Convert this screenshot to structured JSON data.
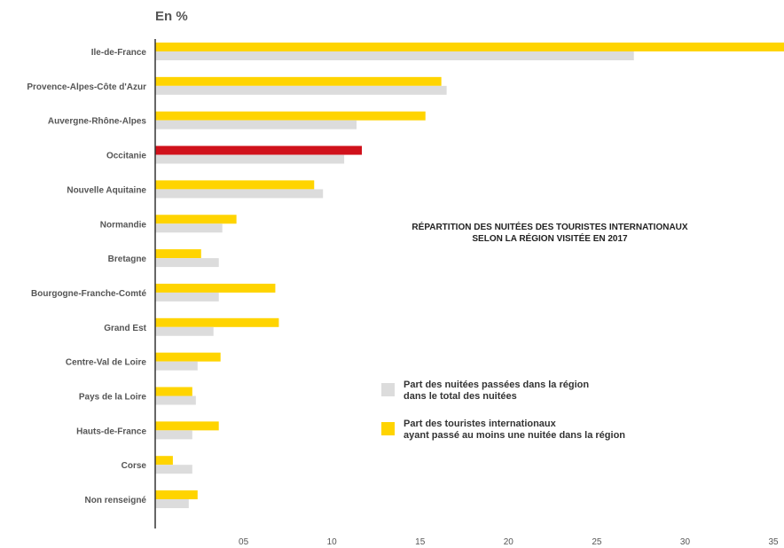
{
  "unit_label": "En %",
  "colors": {
    "series_total": "#dcdcdc",
    "series_tourists": "#ffd400",
    "highlight": "#d0111b",
    "axis": "#333333",
    "text": "#555555"
  },
  "chart_data": {
    "type": "bar",
    "orientation": "horizontal",
    "title_lines": [
      "RÉPARTITION DES NUITÉES DES TOURISTES INTERNATIONAUX",
      "SELON LA RÉGION VISITÉE EN 2017"
    ],
    "categories": [
      "Ile-de-France",
      "Provence-Alpes-Côte d'Azur",
      "Auvergne-Rhône-Alpes",
      "Occitanie",
      "Nouvelle Aquitaine",
      "Normandie",
      "Bretagne",
      "Bourgogne-Franche-Comté",
      "Grand Est",
      "Centre-Val de Loire",
      "Pays de la Loire",
      "Hauts-de-France",
      "Corse",
      "Non renseigné"
    ],
    "highlight_category": "Occitanie",
    "series": [
      {
        "name_lines": [
          "Part des touristes internationaux",
          "ayant passé au moins une nuitée dans la région"
        ],
        "values": [
          35.6,
          16.2,
          15.3,
          11.7,
          9.0,
          4.6,
          2.6,
          6.8,
          7.0,
          3.7,
          2.1,
          3.6,
          1.0,
          2.4
        ]
      },
      {
        "name_lines": [
          "Part des nuitées passées dans la région",
          "dans le total des nuitées"
        ],
        "values": [
          27.1,
          16.5,
          11.4,
          10.7,
          9.5,
          3.8,
          3.6,
          3.6,
          3.3,
          2.4,
          2.3,
          2.1,
          2.1,
          1.9
        ]
      }
    ],
    "x_ticks": [
      {
        "value": 5,
        "label": "05"
      },
      {
        "value": 10,
        "label": "10"
      },
      {
        "value": 15,
        "label": "15"
      },
      {
        "value": 20,
        "label": "20"
      },
      {
        "value": 25,
        "label": "25"
      },
      {
        "value": 30,
        "label": "30"
      },
      {
        "value": 35,
        "label": "35"
      }
    ],
    "xlim": [
      0,
      35.6
    ],
    "grid": false,
    "legend_position": "center-right"
  }
}
